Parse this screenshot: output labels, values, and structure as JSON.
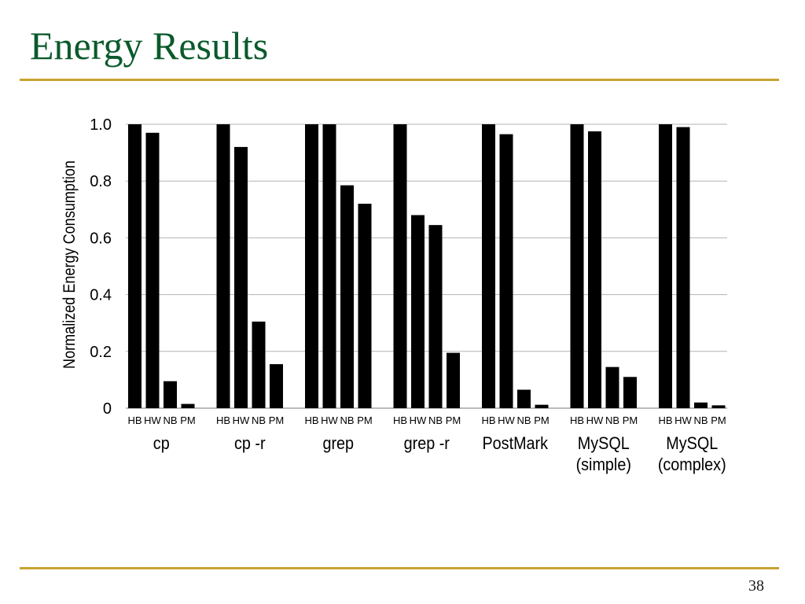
{
  "slide": {
    "title": "Energy Results",
    "page_number": "38"
  },
  "colors": {
    "title": "#0b5a2c",
    "rule": "#c9a32f",
    "bar": "#000000",
    "grid": "#b3b3b3"
  },
  "chart_data": {
    "type": "bar",
    "title": "",
    "xlabel": "",
    "ylabel": "Normalized Energy Consumption",
    "ylim": [
      0,
      1.0
    ],
    "yticks": [
      "0",
      "0.2",
      "0.4",
      "0.6",
      "0.8",
      "1.0"
    ],
    "ytick_values": [
      0,
      0.2,
      0.4,
      0.6,
      0.8,
      1.0
    ],
    "grid": true,
    "legend": "none",
    "series_labels": [
      "HB",
      "HW",
      "NB",
      "PM"
    ],
    "groups": [
      {
        "label": [
          "cp"
        ],
        "values": [
          1.0,
          0.97,
          0.095,
          0.015
        ]
      },
      {
        "label": [
          "cp -r"
        ],
        "values": [
          1.0,
          0.92,
          0.305,
          0.155
        ]
      },
      {
        "label": [
          "grep"
        ],
        "values": [
          1.0,
          1.0,
          0.785,
          0.72
        ]
      },
      {
        "label": [
          "grep -r"
        ],
        "values": [
          1.0,
          0.68,
          0.645,
          0.195
        ]
      },
      {
        "label": [
          "PostMark"
        ],
        "values": [
          1.0,
          0.965,
          0.065,
          0.012
        ]
      },
      {
        "label": [
          "MySQL",
          "(simple)"
        ],
        "values": [
          1.0,
          0.975,
          0.145,
          0.11
        ]
      },
      {
        "label": [
          "MySQL",
          "(complex)"
        ],
        "values": [
          1.0,
          0.99,
          0.02,
          0.01
        ]
      }
    ]
  }
}
